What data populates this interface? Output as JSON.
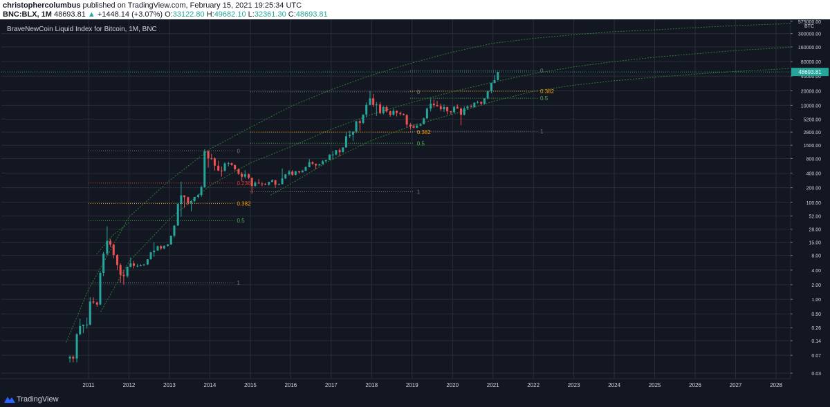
{
  "header": {
    "author": "christophercolumbus",
    "published_text": "published on TradingView.com, February 15, 2021 19:25:34 UTC",
    "symbol_text": "BNC:BLX, 1M",
    "last": "48693.81",
    "change_arrow": "▲",
    "change": "+1448.14 (+3.07%)",
    "open_label": "O:",
    "open": "33122.80",
    "high_label": "H:",
    "high": "49682.10",
    "low_label": "L:",
    "low": "32361.30",
    "close_label": "C:",
    "close": "48693.81"
  },
  "footer": {
    "brand": "TradingView",
    "logo_icon": "tradingview-logo-icon"
  },
  "chart_data": {
    "type": "candlestick",
    "title": "BraveNewCoin Liquid Index for Bitcoin, 1M, BNC",
    "y_scale": "log",
    "y_currency_label": "BTC",
    "current_price_label": "48693.81",
    "y_ticks": [
      "575000.00",
      "300000.00",
      "160000.00",
      "80000.00",
      "40000.00",
      "20000.00",
      "10000.00",
      "5200.00",
      "2800.00",
      "1500.00",
      "800.00",
      "400.00",
      "200.00",
      "100.00",
      "52.00",
      "28.00",
      "15.00",
      "8.00",
      "4.00",
      "2.00",
      "1.00",
      "0.50",
      "0.26",
      "0.14",
      "0.07",
      "0.03"
    ],
    "x_ticks": [
      "2011",
      "2012",
      "2013",
      "2014",
      "2015",
      "2016",
      "2017",
      "2018",
      "2019",
      "2020",
      "2021",
      "2022",
      "2023",
      "2024",
      "2025",
      "2026",
      "2027",
      "2028"
    ],
    "grid": true,
    "colors": {
      "up": "#26a69a",
      "down": "#ef5350",
      "background": "#131722",
      "axis_text": "#d1d4dc",
      "grid": "#2a2e39",
      "curve": "#2e7d32",
      "fib_0": "#787b86",
      "fib_0236": "#e53935",
      "fib_0382": "#ff9800",
      "fib_05": "#4caf50",
      "fib_1": "#787b86",
      "price_label_bg": "#26a69a"
    },
    "fib_levels": [
      {
        "x_start": 2011.0,
        "x_end": 2014.6,
        "lines": [
          {
            "label": "0",
            "value": 1150,
            "color": "fib_0"
          },
          {
            "label": "0.236",
            "value": 250,
            "color": "fib_0236"
          },
          {
            "label": "0.382",
            "value": 95,
            "color": "fib_0382"
          },
          {
            "label": "0.5",
            "value": 42,
            "color": "fib_05"
          },
          {
            "label": "1",
            "value": 2.2,
            "color": "fib_1"
          }
        ]
      },
      {
        "x_start": 2015.0,
        "x_end": 2019.05,
        "lines": [
          {
            "label": "0",
            "value": 19000,
            "color": "fib_0"
          },
          {
            "label": "0.382",
            "value": 2800,
            "color": "fib_0382"
          },
          {
            "label": "0.5",
            "value": 1650,
            "color": "fib_05"
          },
          {
            "label": "1",
            "value": 165,
            "color": "fib_1"
          }
        ]
      },
      {
        "x_start": 2018.95,
        "x_end": 2022.1,
        "lines": [
          {
            "label": "0",
            "value": 52000,
            "color": "fib_0"
          },
          {
            "label": "0.382",
            "value": 19500,
            "color": "fib_0382"
          },
          {
            "label": "0.5",
            "value": 14000,
            "color": "fib_05"
          },
          {
            "label": "1",
            "value": 2900,
            "color": "fib_1"
          }
        ]
      }
    ],
    "log_curves": [
      {
        "points": [
          [
            2010.45,
            0.13
          ],
          [
            2011.0,
            1.6
          ],
          [
            2012.0,
            50
          ],
          [
            2013.0,
            280
          ],
          [
            2014.0,
            1250
          ],
          [
            2015.0,
            3500
          ],
          [
            2016.0,
            9500
          ],
          [
            2017.0,
            21000
          ],
          [
            2018.0,
            42000
          ],
          [
            2019.0,
            75000
          ],
          [
            2020.0,
            125000
          ],
          [
            2021.0,
            190000
          ],
          [
            2022.0,
            240000
          ],
          [
            2023.0,
            285000
          ],
          [
            2024.0,
            330000
          ],
          [
            2025.0,
            360000
          ],
          [
            2026.0,
            400000
          ],
          [
            2027.0,
            440000
          ],
          [
            2028.5,
            490000
          ]
        ]
      },
      {
        "points": [
          [
            2011.3,
            0.55
          ],
          [
            2012.0,
            6
          ],
          [
            2013.0,
            45
          ],
          [
            2014.0,
            220
          ],
          [
            2015.0,
            650
          ],
          [
            2016.0,
            1400
          ],
          [
            2017.0,
            3200
          ],
          [
            2018.0,
            6500
          ],
          [
            2019.0,
            11500
          ],
          [
            2020.0,
            19000
          ],
          [
            2021.0,
            30000
          ],
          [
            2022.0,
            45000
          ],
          [
            2023.0,
            62000
          ],
          [
            2024.0,
            80000
          ],
          [
            2025.0,
            98000
          ],
          [
            2026.0,
            115000
          ],
          [
            2027.0,
            135000
          ],
          [
            2028.5,
            160000
          ]
        ]
      },
      {
        "points": [
          [
            2011.2,
            8.5
          ],
          [
            2011.6,
            21
          ],
          [
            2012.0,
            38
          ]
        ]
      },
      {
        "points": [
          [
            2015.5,
            140
          ],
          [
            2016.0,
            240
          ],
          [
            2017.0,
            750
          ],
          [
            2018.0,
            1900
          ],
          [
            2019.0,
            3800
          ],
          [
            2020.0,
            6500
          ],
          [
            2021.0,
            12000
          ],
          [
            2022.0,
            19500
          ],
          [
            2023.0,
            26000
          ],
          [
            2024.0,
            32000
          ],
          [
            2025.0,
            38000
          ],
          [
            2026.0,
            44000
          ],
          [
            2027.0,
            50000
          ],
          [
            2028.5,
            58000
          ]
        ]
      }
    ],
    "candles": [
      [
        2010.54,
        0.06,
        0.07,
        0.05,
        0.065
      ],
      [
        2010.62,
        0.065,
        0.07,
        0.05,
        0.06
      ],
      [
        2010.71,
        0.06,
        0.2,
        0.05,
        0.19
      ],
      [
        2010.79,
        0.19,
        0.4,
        0.18,
        0.28
      ],
      [
        2010.87,
        0.28,
        0.3,
        0.2,
        0.3
      ],
      [
        2010.96,
        0.3,
        0.42,
        0.25,
        0.3
      ],
      [
        2011.04,
        0.3,
        1.1,
        0.29,
        0.9
      ],
      [
        2011.12,
        0.9,
        1.1,
        0.8,
        0.86
      ],
      [
        2011.21,
        0.86,
        0.9,
        0.7,
        0.78
      ],
      [
        2011.29,
        0.78,
        3.8,
        0.75,
        3.5
      ],
      [
        2011.37,
        3.5,
        9.5,
        3.0,
        8.7
      ],
      [
        2011.46,
        8.7,
        31.9,
        8.0,
        16.0
      ],
      [
        2011.54,
        16.0,
        17.5,
        12.0,
        13.4
      ],
      [
        2011.62,
        13.4,
        14.0,
        7.0,
        8.2
      ],
      [
        2011.71,
        8.2,
        8.5,
        4.0,
        5.1
      ],
      [
        2011.79,
        5.1,
        5.5,
        2.2,
        3.2
      ],
      [
        2011.87,
        3.2,
        4.0,
        2.0,
        3.0
      ],
      [
        2011.96,
        3.0,
        4.6,
        2.8,
        4.7
      ],
      [
        2012.04,
        4.7,
        7.3,
        4.5,
        5.5
      ],
      [
        2012.12,
        5.5,
        6.2,
        4.3,
        4.9
      ],
      [
        2012.21,
        4.9,
        5.4,
        4.6,
        4.9
      ],
      [
        2012.29,
        4.9,
        5.3,
        4.8,
        5.0
      ],
      [
        2012.37,
        5.0,
        5.4,
        4.9,
        5.2
      ],
      [
        2012.46,
        5.2,
        6.7,
        5.1,
        6.7
      ],
      [
        2012.54,
        6.7,
        9.5,
        6.6,
        9.3
      ],
      [
        2012.62,
        9.3,
        15.0,
        7.5,
        10.1
      ],
      [
        2012.71,
        10.1,
        12.8,
        10.0,
        12.4
      ],
      [
        2012.79,
        12.4,
        13.0,
        10.3,
        11.2
      ],
      [
        2012.87,
        11.2,
        13.0,
        10.8,
        12.6
      ],
      [
        2012.96,
        12.6,
        13.8,
        12.2,
        13.5
      ],
      [
        2013.04,
        13.5,
        20.5,
        13.2,
        20.4
      ],
      [
        2013.12,
        20.4,
        34.0,
        19.0,
        33.0
      ],
      [
        2013.21,
        33.0,
        95.0,
        33.0,
        93.0
      ],
      [
        2013.29,
        93.0,
        266.0,
        50.0,
        139.0
      ],
      [
        2013.37,
        139.0,
        140.0,
        77.0,
        128.0
      ],
      [
        2013.46,
        128.0,
        130.0,
        88.0,
        97.0
      ],
      [
        2013.54,
        97.0,
        110.0,
        65.0,
        106.0
      ],
      [
        2013.62,
        106.0,
        130.0,
        100.0,
        129.0
      ],
      [
        2013.71,
        129.0,
        150.0,
        120.0,
        141.0
      ],
      [
        2013.79,
        141.0,
        220.0,
        130.0,
        206.0
      ],
      [
        2013.87,
        206.0,
        1240.0,
        200.0,
        1130.0
      ],
      [
        2013.96,
        1130.0,
        1150.0,
        520.0,
        805.0
      ],
      [
        2014.04,
        805.0,
        1000.0,
        750.0,
        800.0
      ],
      [
        2014.12,
        800.0,
        850.0,
        450.0,
        570.0
      ],
      [
        2014.21,
        570.0,
        720.0,
        440.0,
        450.0
      ],
      [
        2014.29,
        450.0,
        550.0,
        340.0,
        445.0
      ],
      [
        2014.37,
        445.0,
        670.0,
        430.0,
        630.0
      ],
      [
        2014.46,
        630.0,
        680.0,
        550.0,
        640.0
      ],
      [
        2014.54,
        640.0,
        660.0,
        570.0,
        585.0
      ],
      [
        2014.62,
        585.0,
        600.0,
        450.0,
        480.0
      ],
      [
        2014.71,
        480.0,
        500.0,
        370.0,
        385.0
      ],
      [
        2014.79,
        385.0,
        420.0,
        275.0,
        338.0
      ],
      [
        2014.87,
        338.0,
        460.0,
        310.0,
        378.0
      ],
      [
        2014.96,
        378.0,
        390.0,
        300.0,
        320.0
      ],
      [
        2015.04,
        320.0,
        320.0,
        150.0,
        217.0
      ],
      [
        2015.12,
        217.0,
        270.0,
        210.0,
        254.0
      ],
      [
        2015.21,
        254.0,
        300.0,
        240.0,
        244.0
      ],
      [
        2015.29,
        244.0,
        260.0,
        215.0,
        236.0
      ],
      [
        2015.37,
        236.0,
        250.0,
        225.0,
        230.0
      ],
      [
        2015.46,
        230.0,
        265.0,
        220.0,
        263.0
      ],
      [
        2015.54,
        263.0,
        300.0,
        260.0,
        284.0
      ],
      [
        2015.62,
        284.0,
        290.0,
        200.0,
        230.0
      ],
      [
        2015.71,
        230.0,
        245.0,
        225.0,
        236.0
      ],
      [
        2015.79,
        236.0,
        500.0,
        235.0,
        311.0
      ],
      [
        2015.87,
        311.0,
        380.0,
        300.0,
        377.0
      ],
      [
        2015.96,
        377.0,
        465.0,
        355.0,
        430.0
      ],
      [
        2016.04,
        430.0,
        460.0,
        350.0,
        369.0
      ],
      [
        2016.12,
        369.0,
        440.0,
        360.0,
        437.0
      ],
      [
        2016.21,
        437.0,
        440.0,
        390.0,
        416.0
      ],
      [
        2016.29,
        416.0,
        470.0,
        410.0,
        448.0
      ],
      [
        2016.37,
        448.0,
        550.0,
        440.0,
        530.0
      ],
      [
        2016.46,
        530.0,
        780.0,
        525.0,
        673.0
      ],
      [
        2016.54,
        673.0,
        700.0,
        590.0,
        624.0
      ],
      [
        2016.62,
        624.0,
        630.0,
        480.0,
        575.0
      ],
      [
        2016.71,
        575.0,
        620.0,
        570.0,
        609.0
      ],
      [
        2016.79,
        609.0,
        740.0,
        605.0,
        700.0
      ],
      [
        2016.87,
        700.0,
        755.0,
        680.0,
        745.0
      ],
      [
        2016.96,
        745.0,
        980.0,
        740.0,
        964.0
      ],
      [
        2017.04,
        964.0,
        1150.0,
        750.0,
        965.0
      ],
      [
        2017.12,
        965.0,
        1200.0,
        920.0,
        1190.0
      ],
      [
        2017.21,
        1190.0,
        1300.0,
        890.0,
        1080.0
      ],
      [
        2017.29,
        1080.0,
        1360.0,
        1070.0,
        1350.0
      ],
      [
        2017.37,
        1350.0,
        2760.0,
        1340.0,
        2300.0
      ],
      [
        2017.46,
        2300.0,
        2980.0,
        2100.0,
        2480.0
      ],
      [
        2017.54,
        2480.0,
        2900.0,
        1830.0,
        2870.0
      ],
      [
        2017.62,
        2870.0,
        4700.0,
        2650.0,
        4700.0
      ],
      [
        2017.71,
        4700.0,
        5000.0,
        2950.0,
        4340.0
      ],
      [
        2017.79,
        4340.0,
        6450.0,
        4100.0,
        6450.0
      ],
      [
        2017.87,
        6450.0,
        11500.0,
        5600.0,
        10200.0
      ],
      [
        2017.96,
        10200.0,
        19700.0,
        10000.0,
        13900.0
      ],
      [
        2018.04,
        13900.0,
        17200.0,
        9200.0,
        10200.0
      ],
      [
        2018.12,
        10200.0,
        11700.0,
        6000.0,
        10400.0
      ],
      [
        2018.21,
        10400.0,
        11600.0,
        6500.0,
        6900.0
      ],
      [
        2018.29,
        6900.0,
        9700.0,
        6500.0,
        9200.0
      ],
      [
        2018.37,
        9200.0,
        9900.0,
        7100.0,
        7500.0
      ],
      [
        2018.46,
        7500.0,
        7800.0,
        5800.0,
        6400.0
      ],
      [
        2018.54,
        6400.0,
        8500.0,
        6100.0,
        7700.0
      ],
      [
        2018.62,
        7700.0,
        7800.0,
        5900.0,
        7000.0
      ],
      [
        2018.71,
        7000.0,
        7400.0,
        6100.0,
        6600.0
      ],
      [
        2018.79,
        6600.0,
        6800.0,
        6200.0,
        6300.0
      ],
      [
        2018.87,
        6300.0,
        6500.0,
        3500.0,
        4000.0
      ],
      [
        2018.96,
        4000.0,
        4300.0,
        3150.0,
        3700.0
      ],
      [
        2019.04,
        3700.0,
        4100.0,
        3350.0,
        3450.0
      ],
      [
        2019.12,
        3450.0,
        4200.0,
        3380.0,
        3810.0
      ],
      [
        2019.21,
        3810.0,
        4100.0,
        3700.0,
        4100.0
      ],
      [
        2019.29,
        4100.0,
        5600.0,
        4050.0,
        5350.0
      ],
      [
        2019.37,
        5350.0,
        9000.0,
        5300.0,
        8550.0
      ],
      [
        2019.46,
        8550.0,
        13800.0,
        7500.0,
        10800.0
      ],
      [
        2019.54,
        10800.0,
        13200.0,
        9000.0,
        10100.0
      ],
      [
        2019.62,
        10100.0,
        12300.0,
        9300.0,
        9600.0
      ],
      [
        2019.71,
        9600.0,
        10900.0,
        7700.0,
        8300.0
      ],
      [
        2019.79,
        8300.0,
        10400.0,
        7300.0,
        9200.0
      ],
      [
        2019.87,
        9200.0,
        9300.0,
        6500.0,
        7550.0
      ],
      [
        2019.96,
        7550.0,
        7700.0,
        6400.0,
        7200.0
      ],
      [
        2020.04,
        7200.0,
        9600.0,
        6900.0,
        9350.0
      ],
      [
        2020.12,
        9350.0,
        10500.0,
        8500.0,
        8550.0
      ],
      [
        2020.21,
        8550.0,
        9200.0,
        3850.0,
        6400.0
      ],
      [
        2020.29,
        6400.0,
        9500.0,
        6150.0,
        8650.0
      ],
      [
        2020.37,
        8650.0,
        10000.0,
        8100.0,
        9450.0
      ],
      [
        2020.46,
        9450.0,
        10400.0,
        8900.0,
        9150.0
      ],
      [
        2020.54,
        9150.0,
        11450.0,
        9000.0,
        11350.0
      ],
      [
        2020.62,
        11350.0,
        12450.0,
        10900.0,
        11650.0
      ],
      [
        2020.71,
        11650.0,
        12100.0,
        9900.0,
        10800.0
      ],
      [
        2020.79,
        10800.0,
        14000.0,
        10400.0,
        13800.0
      ],
      [
        2020.87,
        13800.0,
        19800.0,
        13200.0,
        19700.0
      ],
      [
        2020.96,
        19700.0,
        29300.0,
        17600.0,
        28900.0
      ],
      [
        2021.04,
        28900.0,
        41900.0,
        28200.0,
        33100.0
      ],
      [
        2021.12,
        33100.0,
        49700.0,
        32400.0,
        48700.0
      ]
    ]
  }
}
